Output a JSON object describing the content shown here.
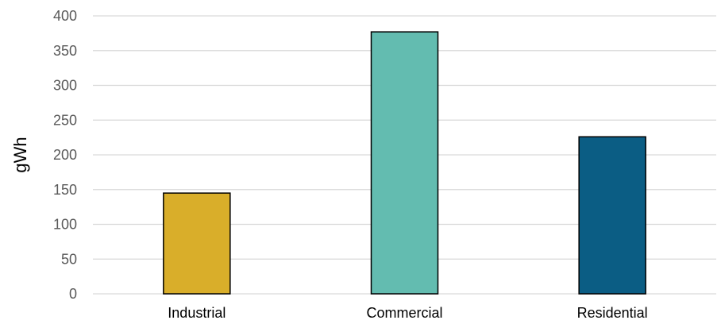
{
  "chart_data": {
    "type": "bar",
    "categories": [
      "Industrial",
      "Commercial",
      "Residential"
    ],
    "values": [
      145,
      377,
      226
    ],
    "colors": [
      "#d9ae2a",
      "#63bcb0",
      "#0b5d84"
    ],
    "title": "",
    "xlabel": "",
    "ylabel": "gWh",
    "ylim": [
      0,
      400
    ],
    "yticks": [
      0,
      50,
      100,
      150,
      200,
      250,
      300,
      350,
      400
    ],
    "grid": true,
    "legend": "none"
  }
}
